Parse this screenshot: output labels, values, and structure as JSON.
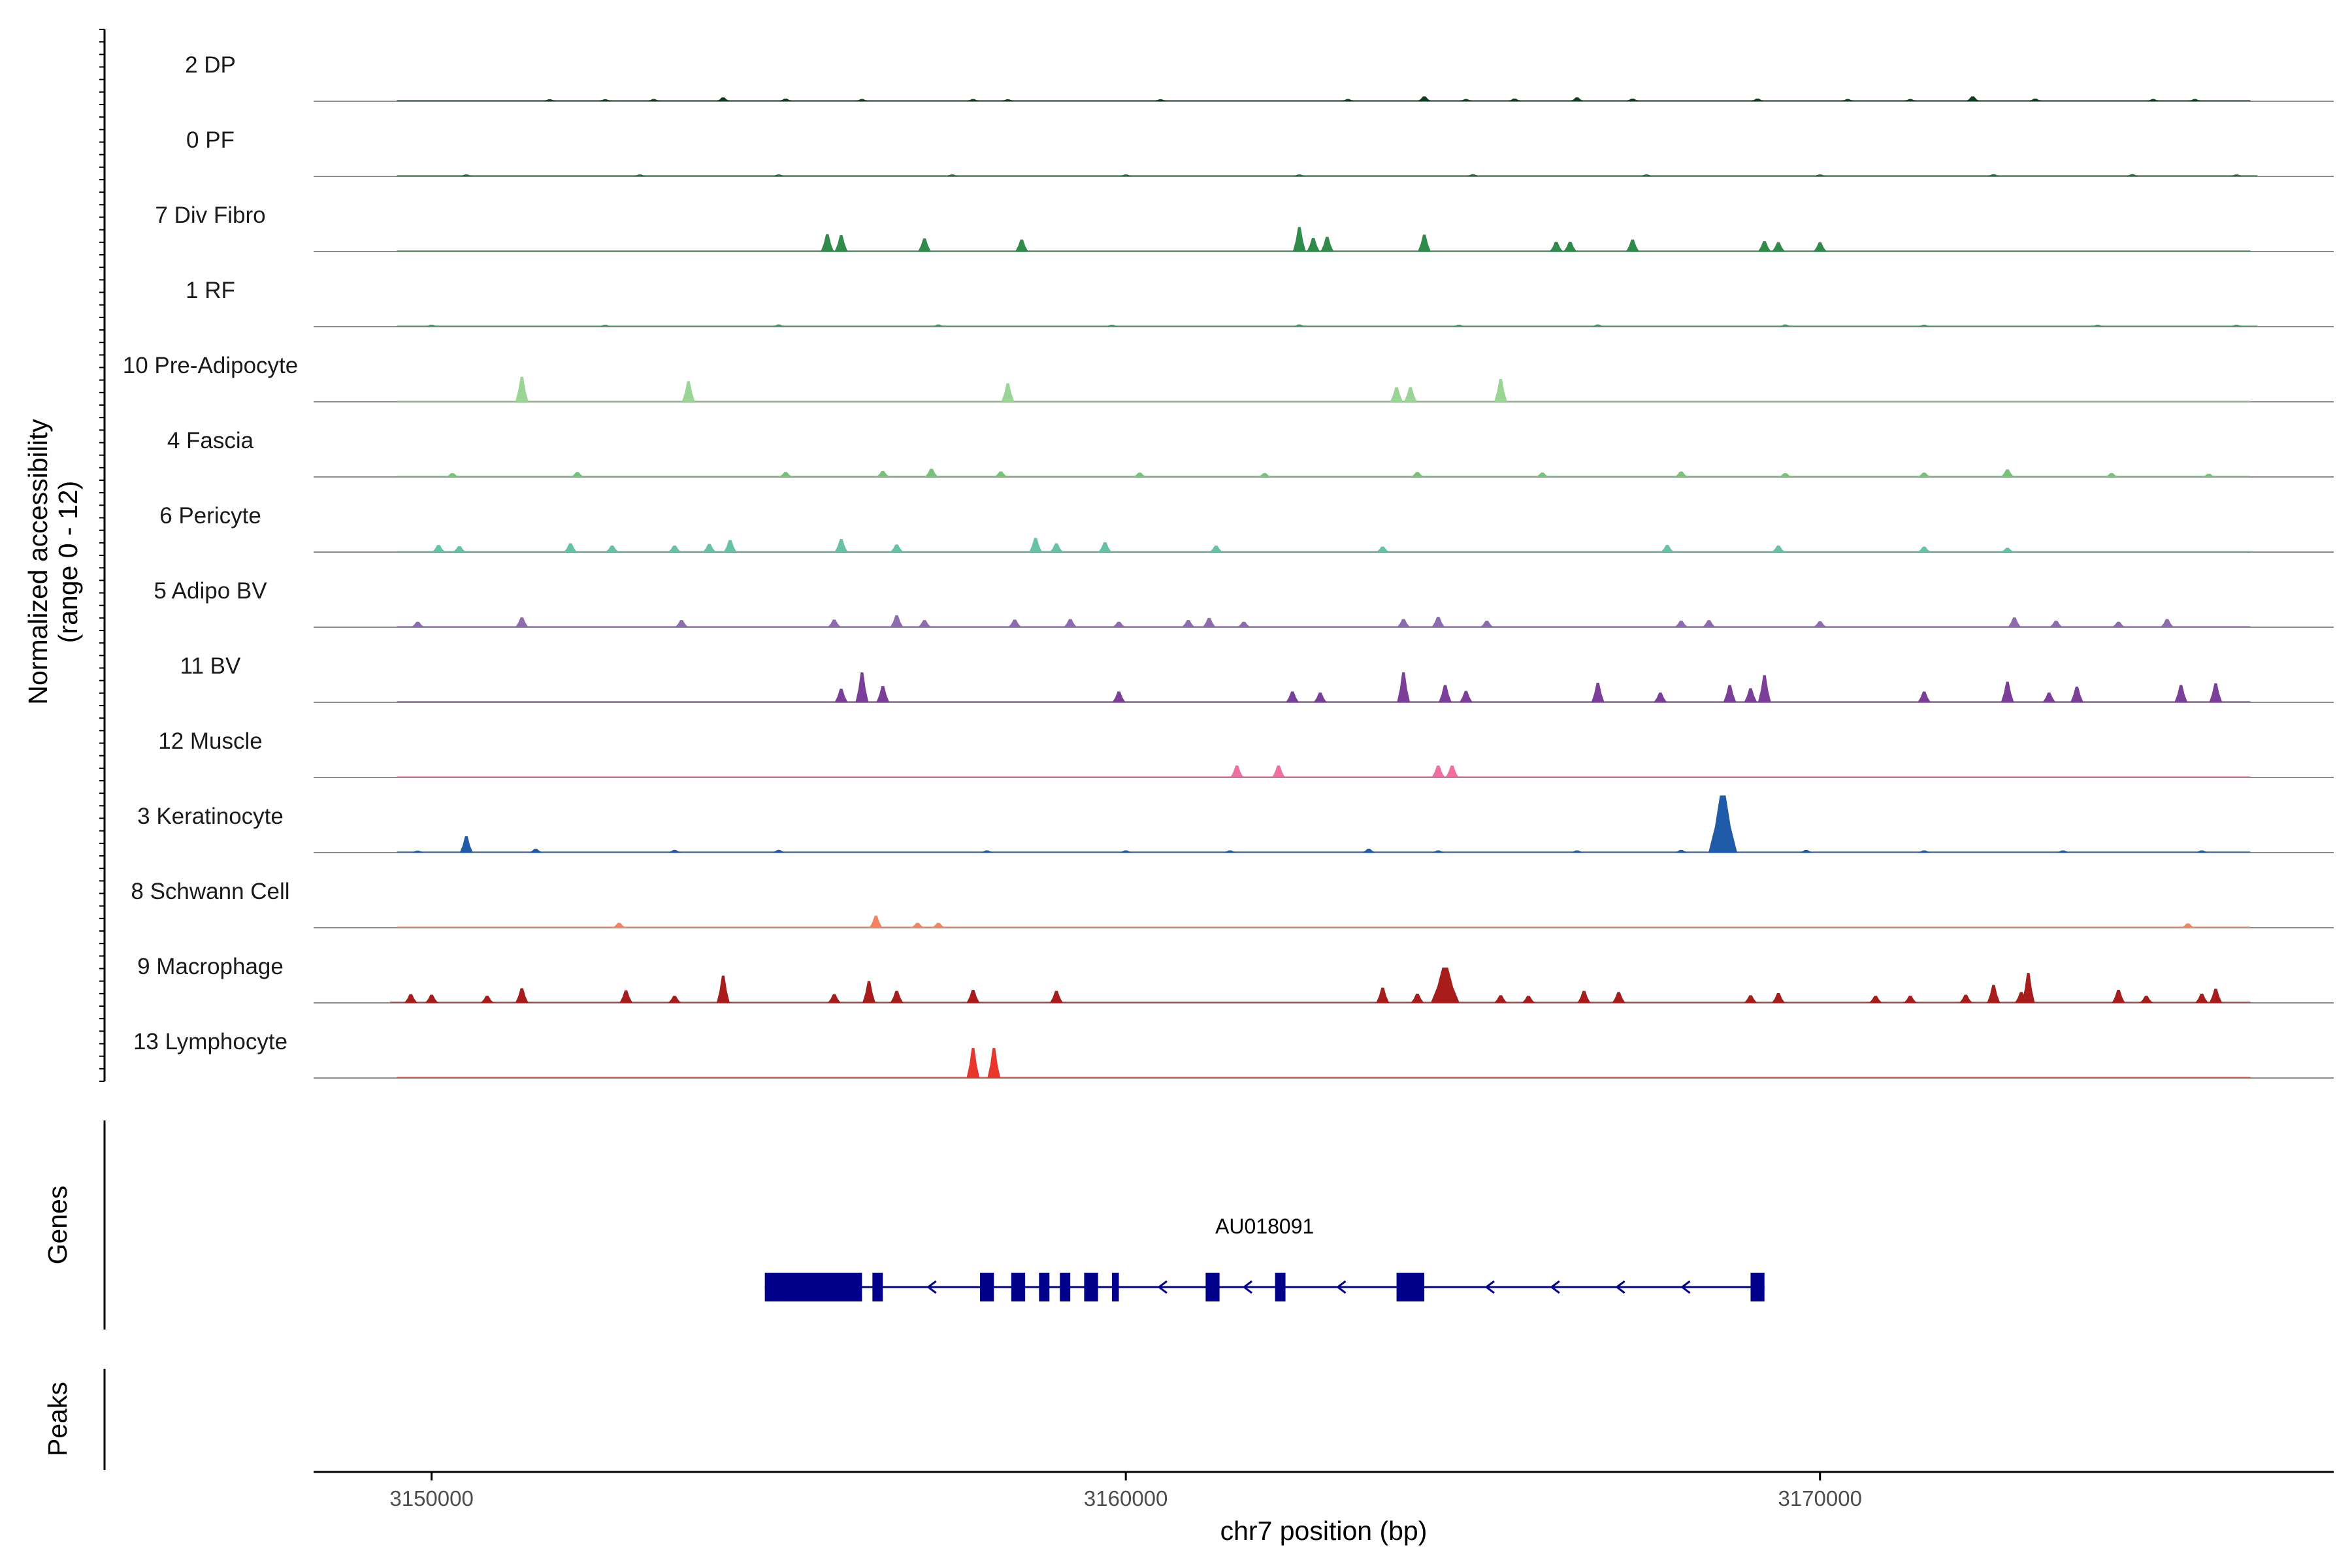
{
  "chart_data": {
    "type": "area",
    "xlabel": "chr7 position (bp)",
    "ylabel": [
      "Normalized accessibility",
      "(range 0 - 12)"
    ],
    "y_range": [
      0,
      12
    ],
    "xlim": [
      3148300,
      3177400
    ],
    "xticks": [
      3150000,
      3160000,
      3170000
    ],
    "grid": false,
    "series": [
      {
        "name": "2 DP",
        "color": "#0d3d1e",
        "peaks": [
          [
            3151700,
            0.3
          ],
          [
            3152500,
            0.3
          ],
          [
            3153200,
            0.4
          ],
          [
            3154200,
            0.7
          ],
          [
            3155100,
            0.5
          ],
          [
            3156200,
            0.4
          ],
          [
            3157800,
            0.4
          ],
          [
            3158300,
            0.3
          ],
          [
            3160500,
            0.3
          ],
          [
            3163200,
            0.4
          ],
          [
            3164300,
            0.9
          ],
          [
            3164900,
            0.4
          ],
          [
            3165600,
            0.5
          ],
          [
            3166500,
            0.7
          ],
          [
            3167300,
            0.5
          ],
          [
            3169100,
            0.5
          ],
          [
            3170400,
            0.4
          ],
          [
            3171300,
            0.4
          ],
          [
            3172200,
            0.9
          ],
          [
            3173100,
            0.5
          ],
          [
            3174800,
            0.4
          ],
          [
            3175400,
            0.4
          ]
        ]
      },
      {
        "name": "0 PF",
        "color": "#1a6b34",
        "peaks": [
          [
            3150500,
            0.25
          ],
          [
            3153000,
            0.3
          ],
          [
            3155000,
            0.3
          ],
          [
            3157500,
            0.3
          ],
          [
            3160000,
            0.3
          ],
          [
            3162500,
            0.3
          ],
          [
            3165000,
            0.4
          ],
          [
            3167500,
            0.3
          ],
          [
            3170000,
            0.3
          ],
          [
            3172500,
            0.4
          ],
          [
            3174500,
            0.4
          ],
          [
            3176000,
            0.3
          ]
        ]
      },
      {
        "name": "7 Div Fibro",
        "color": "#2e8b4a",
        "peaks": [
          [
            3155700,
            3.2
          ],
          [
            3155900,
            3.0
          ],
          [
            3157100,
            2.4
          ],
          [
            3158500,
            2.2
          ],
          [
            3162500,
            4.5
          ],
          [
            3162700,
            2.5
          ],
          [
            3162900,
            2.7
          ],
          [
            3164300,
            3.1
          ],
          [
            3166200,
            1.8
          ],
          [
            3166400,
            1.8
          ],
          [
            3167300,
            2.2
          ],
          [
            3169200,
            1.9
          ],
          [
            3169400,
            1.7
          ],
          [
            3170000,
            1.7
          ]
        ]
      },
      {
        "name": "1 RF",
        "color": "#3f9c5a",
        "peaks": [
          [
            3150000,
            0.3
          ],
          [
            3152500,
            0.3
          ],
          [
            3155000,
            0.4
          ],
          [
            3157300,
            0.4
          ],
          [
            3159800,
            0.3
          ],
          [
            3162500,
            0.4
          ],
          [
            3164800,
            0.3
          ],
          [
            3166800,
            0.4
          ],
          [
            3169500,
            0.4
          ],
          [
            3171500,
            0.3
          ],
          [
            3174000,
            0.3
          ],
          [
            3176000,
            0.3
          ]
        ]
      },
      {
        "name": "10 Pre-Adipocyte",
        "color": "#99d594",
        "peaks": [
          [
            3151300,
            4.6
          ],
          [
            3153700,
            3.8
          ],
          [
            3158300,
            3.4
          ],
          [
            3163900,
            2.7
          ],
          [
            3164100,
            2.7
          ],
          [
            3165400,
            4.2
          ]
        ]
      },
      {
        "name": "4 Fascia",
        "color": "#74c476",
        "peaks": [
          [
            3150300,
            0.7
          ],
          [
            3152100,
            0.9
          ],
          [
            3155100,
            0.9
          ],
          [
            3156500,
            1.1
          ],
          [
            3157200,
            1.5
          ],
          [
            3158200,
            1.0
          ],
          [
            3160200,
            0.8
          ],
          [
            3162000,
            0.7
          ],
          [
            3164200,
            0.9
          ],
          [
            3166000,
            0.8
          ],
          [
            3168000,
            1.0
          ],
          [
            3169500,
            0.7
          ],
          [
            3171500,
            0.8
          ],
          [
            3172700,
            1.4
          ],
          [
            3174200,
            0.7
          ],
          [
            3175600,
            0.6
          ]
        ]
      },
      {
        "name": "6 Pericyte",
        "color": "#66c2a5",
        "peaks": [
          [
            3150100,
            1.3
          ],
          [
            3150400,
            1.1
          ],
          [
            3152000,
            1.6
          ],
          [
            3152600,
            1.2
          ],
          [
            3153500,
            1.2
          ],
          [
            3154000,
            1.5
          ],
          [
            3154300,
            2.2
          ],
          [
            3155900,
            2.4
          ],
          [
            3156700,
            1.4
          ],
          [
            3158700,
            2.6
          ],
          [
            3159000,
            1.6
          ],
          [
            3159700,
            1.8
          ],
          [
            3161300,
            1.2
          ],
          [
            3163700,
            1.0
          ],
          [
            3167800,
            1.3
          ],
          [
            3169400,
            1.2
          ],
          [
            3171500,
            1.0
          ],
          [
            3172700,
            0.8
          ]
        ]
      },
      {
        "name": "5 Adipo BV",
        "color": "#8c6bb1",
        "peaks": [
          [
            3149800,
            1.0
          ],
          [
            3151300,
            1.8
          ],
          [
            3153600,
            1.3
          ],
          [
            3155800,
            1.4
          ],
          [
            3156700,
            2.2
          ],
          [
            3157100,
            1.3
          ],
          [
            3158400,
            1.4
          ],
          [
            3159200,
            1.5
          ],
          [
            3159900,
            1.0
          ],
          [
            3160900,
            1.3
          ],
          [
            3161200,
            1.7
          ],
          [
            3161700,
            1.0
          ],
          [
            3164000,
            1.5
          ],
          [
            3164500,
            1.9
          ],
          [
            3165200,
            1.2
          ],
          [
            3168000,
            1.2
          ],
          [
            3168400,
            1.3
          ],
          [
            3170000,
            1.1
          ],
          [
            3172800,
            1.8
          ],
          [
            3173400,
            1.2
          ],
          [
            3174300,
            1.0
          ],
          [
            3175000,
            1.5
          ]
        ]
      },
      {
        "name": "11 BV",
        "color": "#7b3f99",
        "peaks": [
          [
            3155900,
            2.5
          ],
          [
            3156200,
            5.5
          ],
          [
            3156500,
            3.0
          ],
          [
            3159900,
            2.0
          ],
          [
            3162400,
            2.0
          ],
          [
            3162800,
            1.8
          ],
          [
            3164000,
            5.5
          ],
          [
            3164600,
            3.2
          ],
          [
            3164900,
            2.1
          ],
          [
            3166800,
            3.6
          ],
          [
            3167700,
            1.8
          ],
          [
            3168700,
            3.2
          ],
          [
            3169000,
            2.6
          ],
          [
            3169200,
            5.0
          ],
          [
            3171500,
            2.0
          ],
          [
            3172700,
            3.8
          ],
          [
            3173300,
            1.8
          ],
          [
            3173700,
            2.9
          ],
          [
            3175200,
            3.2
          ],
          [
            3175700,
            3.5
          ]
        ]
      },
      {
        "name": "12 Muscle",
        "color": "#f06ea0",
        "peaks": [
          [
            3161600,
            2.2
          ],
          [
            3162200,
            2.2
          ],
          [
            3164500,
            2.2
          ],
          [
            3164700,
            2.2
          ]
        ]
      },
      {
        "name": "3 Keratinocyte",
        "color": "#1f5ba8",
        "peaks": [
          [
            3149800,
            0.3
          ],
          [
            3150500,
            3.0
          ],
          [
            3151500,
            0.7
          ],
          [
            3153500,
            0.5
          ],
          [
            3155000,
            0.5
          ],
          [
            3158000,
            0.4
          ],
          [
            3160000,
            0.4
          ],
          [
            3161500,
            0.4
          ],
          [
            3163500,
            0.7
          ],
          [
            3164500,
            0.4
          ],
          [
            3166500,
            0.4
          ],
          [
            3168000,
            0.5
          ],
          [
            3168600,
            10.5
          ],
          [
            3169800,
            0.5
          ],
          [
            3171500,
            0.4
          ],
          [
            3173500,
            0.4
          ],
          [
            3175500,
            0.4
          ]
        ]
      },
      {
        "name": "8 Schwann Cell",
        "color": "#f4845f",
        "peaks": [
          [
            3152700,
            0.9
          ],
          [
            3156400,
            2.2
          ],
          [
            3157000,
            0.9
          ],
          [
            3157300,
            0.9
          ],
          [
            3175300,
            0.8
          ]
        ]
      },
      {
        "name": "9 Macrophage",
        "color": "#a81c1c",
        "peaks": [
          [
            3149700,
            1.6
          ],
          [
            3150000,
            1.5
          ],
          [
            3150800,
            1.3
          ],
          [
            3151300,
            2.7
          ],
          [
            3152800,
            2.3
          ],
          [
            3153500,
            1.3
          ],
          [
            3154200,
            5.0
          ],
          [
            3155800,
            1.6
          ],
          [
            3156300,
            4.0
          ],
          [
            3156700,
            2.2
          ],
          [
            3157800,
            2.4
          ],
          [
            3159000,
            2.2
          ],
          [
            3163700,
            2.8
          ],
          [
            3164200,
            1.7
          ],
          [
            3164600,
            6.5
          ],
          [
            3165400,
            1.4
          ],
          [
            3165800,
            1.3
          ],
          [
            3166600,
            2.2
          ],
          [
            3167100,
            2.0
          ],
          [
            3169000,
            1.4
          ],
          [
            3169400,
            1.8
          ],
          [
            3170800,
            1.3
          ],
          [
            3171300,
            1.3
          ],
          [
            3172100,
            1.5
          ],
          [
            3172500,
            3.3
          ],
          [
            3172900,
            2.0
          ],
          [
            3173000,
            5.5
          ],
          [
            3174300,
            2.4
          ],
          [
            3174700,
            1.3
          ],
          [
            3175500,
            1.7
          ],
          [
            3175700,
            2.6
          ]
        ]
      },
      {
        "name": "13 Lymphocyte",
        "color": "#e8362a",
        "peaks": [
          [
            3157800,
            5.5
          ],
          [
            3158100,
            5.5
          ]
        ]
      }
    ],
    "genes": {
      "track_label": "Genes",
      "name": "AU018091",
      "strand": "-",
      "start": 3154800,
      "end": 3169200,
      "color": "#00008b",
      "exons": [
        [
          3154800,
          3156200
        ],
        [
          3156350,
          3156500
        ],
        [
          3157900,
          3158100
        ],
        [
          3158350,
          3158550
        ],
        [
          3158750,
          3158900
        ],
        [
          3159050,
          3159200
        ],
        [
          3159400,
          3159600
        ],
        [
          3159800,
          3159900
        ],
        [
          3161150,
          3161350
        ],
        [
          3162150,
          3162300
        ],
        [
          3163900,
          3164300
        ],
        [
          3169000,
          3169200
        ]
      ]
    },
    "peaks_track": {
      "track_label": "Peaks",
      "regions": []
    }
  }
}
